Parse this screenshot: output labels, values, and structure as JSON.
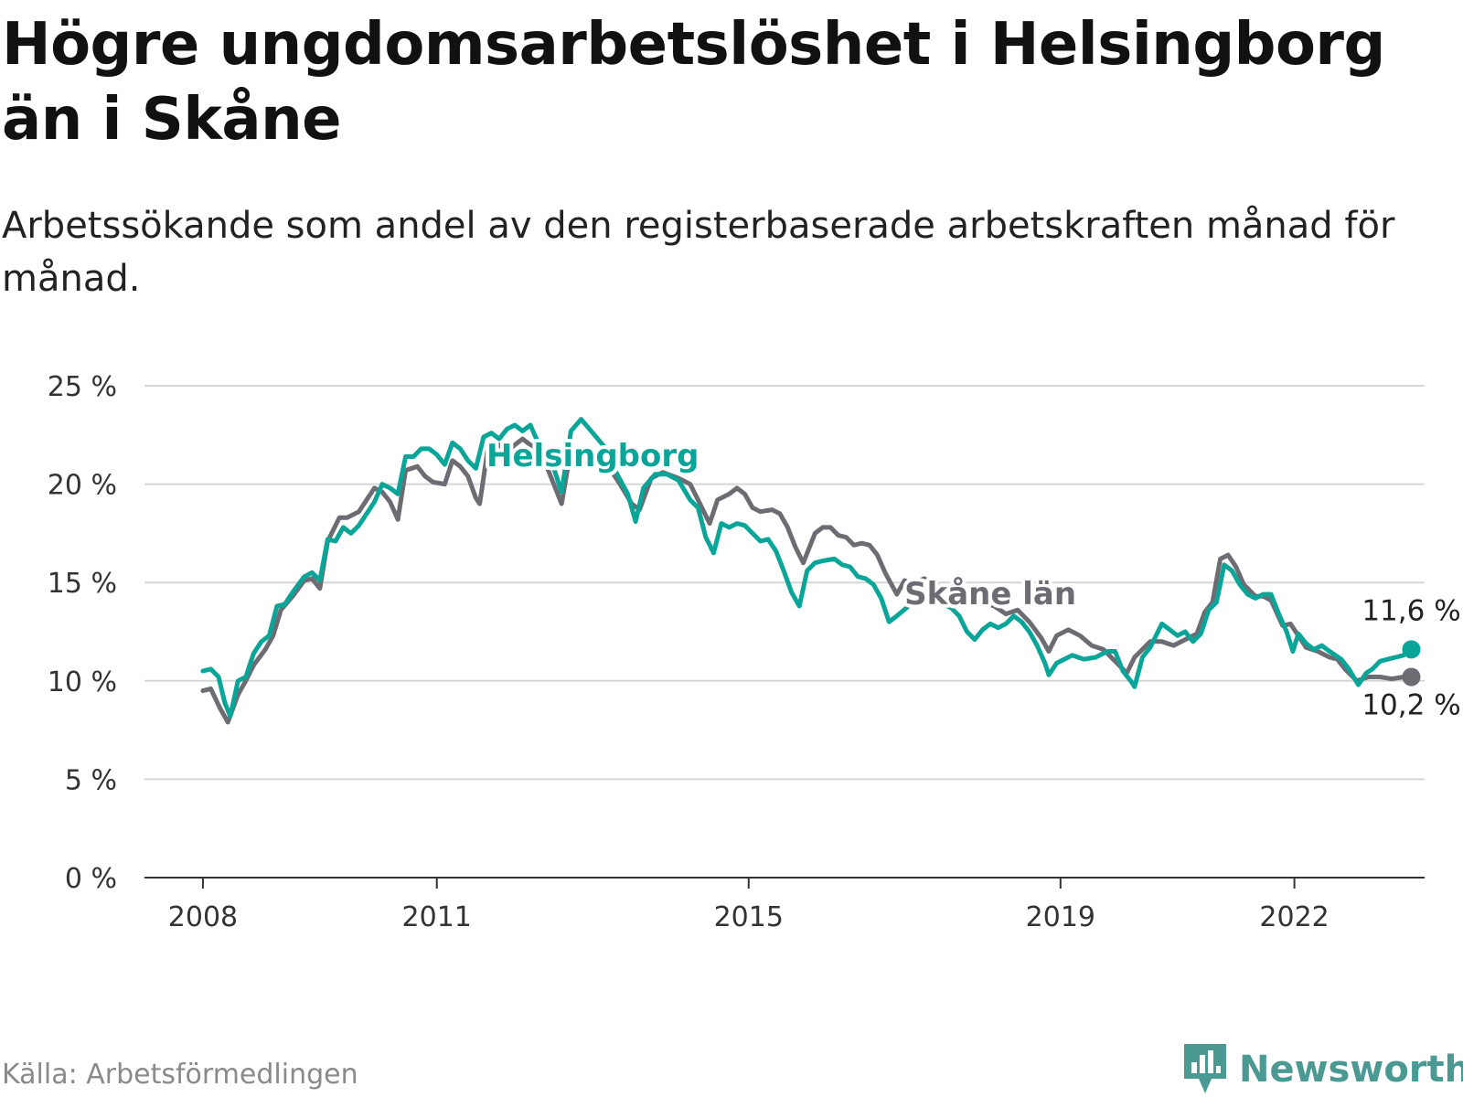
{
  "header": {
    "title": "Högre ungdomsarbetslöshet i Helsingborg än i Skåne",
    "subtitle": "Arbetssökande som andel av den registerbaserade arbetskraften månad för månad."
  },
  "footer": {
    "source": "Källa: Arbetsförmedlingen",
    "brand": "Newsworthy"
  },
  "colors": {
    "helsingborg": "#0aa599",
    "skane": "#6e6c73",
    "grid": "#d6d6d6",
    "axis": "#333333"
  },
  "chart_data": {
    "type": "line",
    "title": "Högre ungdomsarbetslöshet i Helsingborg än i Skåne",
    "xlabel": "",
    "ylabel": "",
    "ylim": [
      0,
      25
    ],
    "xlim": [
      2007.25,
      2023.67
    ],
    "y_ticks": [
      0,
      5,
      10,
      15,
      20,
      25
    ],
    "y_tick_labels": [
      "0 %",
      "5 %",
      "10 %",
      "15 %",
      "20 %",
      "25 %"
    ],
    "x_ticks": [
      2008,
      2011,
      2015,
      2019,
      2022
    ],
    "x_tick_labels": [
      "2008",
      "2011",
      "2015",
      "2019",
      "2022"
    ],
    "grid": true,
    "legend": "inline labels",
    "series": [
      {
        "name": "Skåne län",
        "color": "#6e6c73",
        "end_label": "10,2 %",
        "points": [
          [
            2008.0,
            9.5
          ],
          [
            2008.1,
            9.6
          ],
          [
            2008.22,
            8.6
          ],
          [
            2008.32,
            7.9
          ],
          [
            2008.45,
            9.3
          ],
          [
            2008.55,
            10.0
          ],
          [
            2008.65,
            10.8
          ],
          [
            2008.8,
            11.6
          ],
          [
            2008.9,
            12.3
          ],
          [
            2009.0,
            13.6
          ],
          [
            2009.15,
            14.3
          ],
          [
            2009.3,
            15.1
          ],
          [
            2009.4,
            15.2
          ],
          [
            2009.5,
            14.7
          ],
          [
            2009.6,
            17.1
          ],
          [
            2009.75,
            18.3
          ],
          [
            2009.85,
            18.3
          ],
          [
            2010.0,
            18.6
          ],
          [
            2010.1,
            19.2
          ],
          [
            2010.2,
            19.8
          ],
          [
            2010.3,
            19.6
          ],
          [
            2010.4,
            19.1
          ],
          [
            2010.5,
            18.2
          ],
          [
            2010.6,
            20.7
          ],
          [
            2010.75,
            20.9
          ],
          [
            2010.85,
            20.4
          ],
          [
            2010.95,
            20.1
          ],
          [
            2011.1,
            20.0
          ],
          [
            2011.2,
            21.2
          ],
          [
            2011.3,
            20.9
          ],
          [
            2011.4,
            20.4
          ],
          [
            2011.5,
            19.3
          ],
          [
            2011.55,
            19.0
          ],
          [
            2011.65,
            21.7
          ],
          [
            2011.8,
            22.0
          ],
          [
            2011.9,
            21.5
          ],
          [
            2012.0,
            22.0
          ],
          [
            2012.1,
            22.3
          ],
          [
            2012.2,
            22.0
          ],
          [
            2012.3,
            21.8
          ],
          [
            2012.4,
            21.0
          ],
          [
            2012.6,
            19.0
          ],
          [
            2012.72,
            21.8
          ],
          [
            2012.85,
            21.4
          ],
          [
            2013.0,
            21.0
          ],
          [
            2013.15,
            20.8
          ],
          [
            2013.25,
            20.6
          ],
          [
            2013.35,
            20.0
          ],
          [
            2013.5,
            19.0
          ],
          [
            2013.6,
            18.7
          ],
          [
            2013.75,
            20.3
          ],
          [
            2013.9,
            20.6
          ],
          [
            2014.1,
            20.3
          ],
          [
            2014.25,
            20.0
          ],
          [
            2014.35,
            19.2
          ],
          [
            2014.5,
            18.0
          ],
          [
            2014.6,
            19.2
          ],
          [
            2014.75,
            19.5
          ],
          [
            2014.85,
            19.8
          ],
          [
            2014.95,
            19.5
          ],
          [
            2015.05,
            18.8
          ],
          [
            2015.15,
            18.6
          ],
          [
            2015.3,
            18.7
          ],
          [
            2015.4,
            18.5
          ],
          [
            2015.5,
            17.8
          ],
          [
            2015.6,
            16.8
          ],
          [
            2015.7,
            16.0
          ],
          [
            2015.85,
            17.5
          ],
          [
            2015.95,
            17.8
          ],
          [
            2016.05,
            17.8
          ],
          [
            2016.15,
            17.4
          ],
          [
            2016.25,
            17.3
          ],
          [
            2016.35,
            16.9
          ],
          [
            2016.45,
            17.0
          ],
          [
            2016.55,
            16.9
          ],
          [
            2016.65,
            16.4
          ],
          [
            2016.75,
            15.5
          ],
          [
            2016.9,
            14.4
          ],
          [
            2017.0,
            15.1
          ],
          [
            2017.1,
            14.9
          ],
          [
            2017.25,
            15.2
          ],
          [
            2017.4,
            14.9
          ],
          [
            2017.55,
            14.6
          ],
          [
            2017.7,
            14.4
          ],
          [
            2017.85,
            14.2
          ],
          [
            2018.0,
            14.0
          ],
          [
            2018.15,
            13.8
          ],
          [
            2018.3,
            13.4
          ],
          [
            2018.45,
            13.6
          ],
          [
            2018.6,
            13.0
          ],
          [
            2018.75,
            12.2
          ],
          [
            2018.85,
            11.5
          ],
          [
            2018.95,
            12.3
          ],
          [
            2019.1,
            12.6
          ],
          [
            2019.25,
            12.3
          ],
          [
            2019.4,
            11.8
          ],
          [
            2019.55,
            11.6
          ],
          [
            2019.7,
            11.0
          ],
          [
            2019.85,
            10.4
          ],
          [
            2019.95,
            11.2
          ],
          [
            2020.05,
            11.6
          ],
          [
            2020.15,
            12.0
          ],
          [
            2020.3,
            12.0
          ],
          [
            2020.45,
            11.8
          ],
          [
            2020.6,
            12.1
          ],
          [
            2020.75,
            12.4
          ],
          [
            2020.85,
            13.5
          ],
          [
            2020.95,
            14.0
          ],
          [
            2021.05,
            16.2
          ],
          [
            2021.15,
            16.4
          ],
          [
            2021.25,
            15.8
          ],
          [
            2021.35,
            14.9
          ],
          [
            2021.5,
            14.3
          ],
          [
            2021.6,
            14.3
          ],
          [
            2021.7,
            14.1
          ],
          [
            2021.85,
            12.8
          ],
          [
            2021.95,
            12.9
          ],
          [
            2022.05,
            12.3
          ],
          [
            2022.15,
            11.7
          ],
          [
            2022.3,
            11.5
          ],
          [
            2022.45,
            11.2
          ],
          [
            2022.55,
            11.1
          ],
          [
            2022.65,
            10.6
          ],
          [
            2022.8,
            10.0
          ],
          [
            2022.95,
            10.2
          ],
          [
            2023.1,
            10.2
          ],
          [
            2023.25,
            10.1
          ],
          [
            2023.4,
            10.2
          ],
          [
            2023.5,
            10.2
          ]
        ]
      },
      {
        "name": "Helsingborg",
        "color": "#0aa599",
        "end_label": "11,6 %",
        "points": [
          [
            2008.0,
            10.5
          ],
          [
            2008.1,
            10.6
          ],
          [
            2008.2,
            10.2
          ],
          [
            2008.28,
            8.9
          ],
          [
            2008.35,
            8.2
          ],
          [
            2008.45,
            10.0
          ],
          [
            2008.55,
            10.2
          ],
          [
            2008.65,
            11.4
          ],
          [
            2008.75,
            12.0
          ],
          [
            2008.85,
            12.3
          ],
          [
            2008.95,
            13.8
          ],
          [
            2009.05,
            13.9
          ],
          [
            2009.15,
            14.5
          ],
          [
            2009.3,
            15.3
          ],
          [
            2009.4,
            15.5
          ],
          [
            2009.5,
            15.1
          ],
          [
            2009.6,
            17.2
          ],
          [
            2009.7,
            17.1
          ],
          [
            2009.8,
            17.8
          ],
          [
            2009.9,
            17.5
          ],
          [
            2010.0,
            17.9
          ],
          [
            2010.1,
            18.5
          ],
          [
            2010.2,
            19.1
          ],
          [
            2010.3,
            20.0
          ],
          [
            2010.4,
            19.8
          ],
          [
            2010.5,
            19.5
          ],
          [
            2010.6,
            21.4
          ],
          [
            2010.7,
            21.4
          ],
          [
            2010.8,
            21.8
          ],
          [
            2010.9,
            21.8
          ],
          [
            2011.0,
            21.5
          ],
          [
            2011.1,
            21.0
          ],
          [
            2011.2,
            22.1
          ],
          [
            2011.3,
            21.8
          ],
          [
            2011.4,
            21.2
          ],
          [
            2011.5,
            20.8
          ],
          [
            2011.6,
            22.4
          ],
          [
            2011.7,
            22.6
          ],
          [
            2011.8,
            22.3
          ],
          [
            2011.9,
            22.8
          ],
          [
            2012.0,
            23.0
          ],
          [
            2012.1,
            22.7
          ],
          [
            2012.2,
            23.0
          ],
          [
            2012.3,
            22.1
          ],
          [
            2012.45,
            21.4
          ],
          [
            2012.6,
            19.6
          ],
          [
            2012.72,
            22.7
          ],
          [
            2012.85,
            23.3
          ],
          [
            2013.0,
            22.6
          ],
          [
            2013.15,
            21.9
          ],
          [
            2013.3,
            20.6
          ],
          [
            2013.45,
            19.5
          ],
          [
            2013.55,
            18.1
          ],
          [
            2013.65,
            19.8
          ],
          [
            2013.8,
            20.5
          ],
          [
            2013.95,
            20.5
          ],
          [
            2014.1,
            20.2
          ],
          [
            2014.25,
            19.2
          ],
          [
            2014.35,
            18.8
          ],
          [
            2014.45,
            17.3
          ],
          [
            2014.55,
            16.5
          ],
          [
            2014.65,
            18.0
          ],
          [
            2014.75,
            17.8
          ],
          [
            2014.85,
            18.0
          ],
          [
            2014.95,
            17.9
          ],
          [
            2015.05,
            17.5
          ],
          [
            2015.15,
            17.1
          ],
          [
            2015.25,
            17.2
          ],
          [
            2015.35,
            16.6
          ],
          [
            2015.45,
            15.6
          ],
          [
            2015.55,
            14.5
          ],
          [
            2015.65,
            13.8
          ],
          [
            2015.75,
            15.6
          ],
          [
            2015.85,
            16.0
          ],
          [
            2015.95,
            16.1
          ],
          [
            2016.1,
            16.2
          ],
          [
            2016.2,
            15.9
          ],
          [
            2016.3,
            15.8
          ],
          [
            2016.4,
            15.3
          ],
          [
            2016.5,
            15.2
          ],
          [
            2016.6,
            14.9
          ],
          [
            2016.7,
            14.2
          ],
          [
            2016.8,
            13.0
          ],
          [
            2016.9,
            13.3
          ],
          [
            2017.05,
            13.8
          ],
          [
            2017.2,
            14.3
          ],
          [
            2017.35,
            14.7
          ],
          [
            2017.5,
            13.9
          ],
          [
            2017.6,
            13.7
          ],
          [
            2017.7,
            13.3
          ],
          [
            2017.8,
            12.5
          ],
          [
            2017.9,
            12.1
          ],
          [
            2018.0,
            12.6
          ],
          [
            2018.1,
            12.9
          ],
          [
            2018.2,
            12.7
          ],
          [
            2018.3,
            12.9
          ],
          [
            2018.4,
            13.3
          ],
          [
            2018.5,
            13.0
          ],
          [
            2018.6,
            12.5
          ],
          [
            2018.7,
            11.8
          ],
          [
            2018.8,
            10.9
          ],
          [
            2018.85,
            10.3
          ],
          [
            2018.95,
            10.9
          ],
          [
            2019.05,
            11.1
          ],
          [
            2019.15,
            11.3
          ],
          [
            2019.3,
            11.1
          ],
          [
            2019.45,
            11.2
          ],
          [
            2019.6,
            11.5
          ],
          [
            2019.7,
            11.5
          ],
          [
            2019.8,
            10.5
          ],
          [
            2019.9,
            10.0
          ],
          [
            2019.95,
            9.7
          ],
          [
            2020.05,
            11.2
          ],
          [
            2020.15,
            11.7
          ],
          [
            2020.3,
            12.9
          ],
          [
            2020.4,
            12.6
          ],
          [
            2020.5,
            12.3
          ],
          [
            2020.6,
            12.5
          ],
          [
            2020.7,
            12.0
          ],
          [
            2020.8,
            12.4
          ],
          [
            2020.9,
            13.6
          ],
          [
            2021.0,
            14.0
          ],
          [
            2021.1,
            15.9
          ],
          [
            2021.2,
            15.6
          ],
          [
            2021.3,
            14.9
          ],
          [
            2021.4,
            14.4
          ],
          [
            2021.5,
            14.2
          ],
          [
            2021.6,
            14.4
          ],
          [
            2021.7,
            14.4
          ],
          [
            2021.8,
            13.4
          ],
          [
            2021.9,
            12.5
          ],
          [
            2021.98,
            11.5
          ],
          [
            2022.05,
            12.4
          ],
          [
            2022.15,
            11.9
          ],
          [
            2022.25,
            11.6
          ],
          [
            2022.35,
            11.8
          ],
          [
            2022.45,
            11.5
          ],
          [
            2022.6,
            11.1
          ],
          [
            2022.7,
            10.6
          ],
          [
            2022.82,
            9.8
          ],
          [
            2022.92,
            10.4
          ],
          [
            2023.0,
            10.6
          ],
          [
            2023.1,
            11.0
          ],
          [
            2023.2,
            11.1
          ],
          [
            2023.3,
            11.2
          ],
          [
            2023.4,
            11.3
          ],
          [
            2023.45,
            11.6
          ],
          [
            2023.5,
            11.6
          ]
        ]
      }
    ],
    "annotations": [
      {
        "series": "Helsingborg",
        "text": "Helsingborg"
      },
      {
        "series": "Skåne län",
        "text": "Skåne län"
      }
    ]
  }
}
